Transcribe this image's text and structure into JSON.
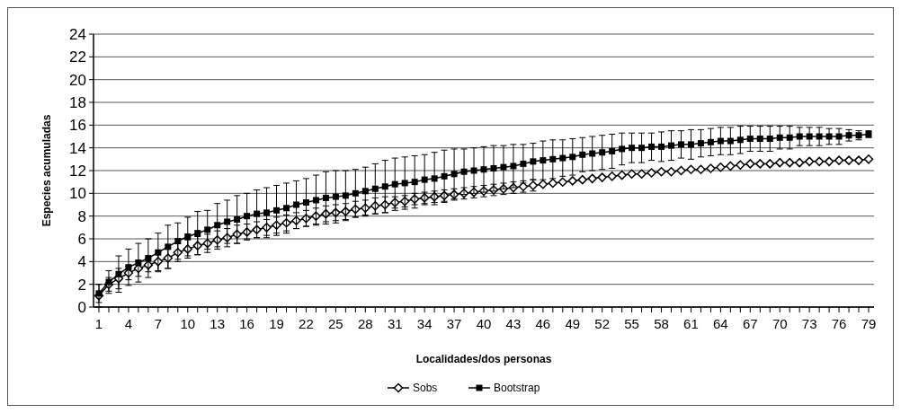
{
  "chart_data": {
    "type": "line",
    "xlabel": "Localidades/dos personas",
    "ylabel": "Especies acumuladas",
    "categories": [
      "1",
      null,
      null,
      "4",
      null,
      null,
      "7",
      null,
      null,
      "10",
      null,
      null,
      "13",
      null,
      null,
      "16",
      null,
      null,
      "19",
      null,
      null,
      "22",
      null,
      null,
      "25",
      null,
      null,
      "28",
      null,
      null,
      "31",
      null,
      null,
      "34",
      null,
      null,
      "37",
      null,
      null,
      "40",
      null,
      null,
      "43",
      null,
      null,
      "46",
      null,
      null,
      "49",
      null,
      null,
      "52",
      null,
      null,
      "55",
      null,
      null,
      "58",
      null,
      null,
      "61",
      null,
      null,
      "64",
      null,
      null,
      "67",
      null,
      null,
      "70",
      null,
      null,
      "73",
      null,
      null,
      "76",
      null,
      null,
      "79"
    ],
    "ylim": [
      0,
      24
    ],
    "yticks": [
      0,
      2,
      4,
      6,
      8,
      10,
      12,
      14,
      16,
      18,
      20,
      22,
      24
    ],
    "grid": "y",
    "legend": "bottom",
    "line_style": "solid",
    "series": [
      {
        "name": "Sobs",
        "color": "#000000",
        "marker": "diamond",
        "values": [
          1,
          2.0,
          2.5,
          3.0,
          3.4,
          3.7,
          4.0,
          4.3,
          4.8,
          5.1,
          5.4,
          5.6,
          5.9,
          6.1,
          6.4,
          6.6,
          6.8,
          7.0,
          7.2,
          7.4,
          7.6,
          7.8,
          8.0,
          8.2,
          8.3,
          8.4,
          8.6,
          8.7,
          8.9,
          9.0,
          9.2,
          9.3,
          9.5,
          9.6,
          9.7,
          9.8,
          9.9,
          10.0,
          10.1,
          10.2,
          10.3,
          10.4,
          10.5,
          10.6,
          10.7,
          10.8,
          10.9,
          11.0,
          11.1,
          11.2,
          11.3,
          11.4,
          11.5,
          11.6,
          11.7,
          11.7,
          11.8,
          11.9,
          11.9,
          12.0,
          12.1,
          12.1,
          12.2,
          12.3,
          12.4,
          12.5,
          12.6,
          12.6,
          12.6,
          12.7,
          12.7,
          12.7,
          12.8,
          12.8,
          12.8,
          12.9,
          12.9,
          12.9,
          13.0
        ],
        "errors": [
          1,
          0.6,
          0.9,
          0.6,
          0.7,
          0.6,
          0.8,
          0.9,
          0.8,
          0.8,
          0.8,
          0.8,
          0.8,
          0.8,
          0.8,
          0.7,
          0.7,
          0.7,
          0.7,
          0.7,
          0.7,
          0.7,
          0.7,
          0.7,
          0.7,
          0.7,
          0.7,
          0.7,
          0.7,
          0.7,
          0.5,
          0.5,
          0.5,
          0.5,
          0.5,
          0.5,
          0.5,
          0.5,
          0.5,
          0.5,
          0.5,
          0.5,
          0.5,
          0.5,
          0.5,
          null,
          null,
          null,
          null,
          null,
          null,
          null,
          null,
          null,
          null,
          null,
          null,
          null,
          null,
          null,
          null,
          null,
          null,
          null,
          null,
          null,
          null,
          null,
          null,
          null,
          null,
          null,
          null,
          null,
          null,
          null,
          null,
          null,
          null
        ]
      },
      {
        "name": "Bootstrap",
        "color": "#000000",
        "marker": "square",
        "values": [
          1.2,
          2.2,
          2.9,
          3.5,
          3.9,
          4.3,
          4.8,
          5.3,
          5.8,
          6.2,
          6.5,
          6.8,
          7.2,
          7.5,
          7.7,
          8.0,
          8.2,
          8.3,
          8.5,
          8.7,
          9.0,
          9.2,
          9.4,
          9.6,
          9.7,
          9.8,
          10.0,
          10.2,
          10.4,
          10.6,
          10.8,
          10.9,
          11.0,
          11.2,
          11.3,
          11.5,
          11.7,
          11.9,
          12.0,
          12.1,
          12.2,
          12.3,
          12.4,
          12.6,
          12.8,
          12.9,
          13.0,
          13.1,
          13.2,
          13.4,
          13.5,
          13.6,
          13.7,
          13.9,
          14.0,
          14.0,
          14.1,
          14.1,
          14.2,
          14.3,
          14.3,
          14.4,
          14.5,
          14.6,
          14.6,
          14.7,
          14.8,
          14.8,
          14.8,
          14.9,
          14.9,
          15.0,
          15.0,
          15.0,
          15.0,
          15.0,
          15.1,
          15.1,
          15.2
        ],
        "errors": [
          0.8,
          1.0,
          1.6,
          1.6,
          1.7,
          1.7,
          1.7,
          1.9,
          1.6,
          1.7,
          1.9,
          1.7,
          1.9,
          1.9,
          2.1,
          2.0,
          2.1,
          2.2,
          2.2,
          2.2,
          2.1,
          2.1,
          2.2,
          2.3,
          2.3,
          2.2,
          2.1,
          2.1,
          2.2,
          2.3,
          2.3,
          2.3,
          2.3,
          2.2,
          2.3,
          2.3,
          2.2,
          2.0,
          2.0,
          2.0,
          2.0,
          1.9,
          1.9,
          1.7,
          1.6,
          1.7,
          1.7,
          1.6,
          1.6,
          1.5,
          1.5,
          1.5,
          1.5,
          1.4,
          1.3,
          1.3,
          1.2,
          1.3,
          1.3,
          1.2,
          1.3,
          1.2,
          1.2,
          1.2,
          1.2,
          1.2,
          1.1,
          1.1,
          1.1,
          1.0,
          1.0,
          0.8,
          0.8,
          0.8,
          0.7,
          0.7,
          0.5,
          0.4,
          0.3
        ]
      }
    ]
  }
}
